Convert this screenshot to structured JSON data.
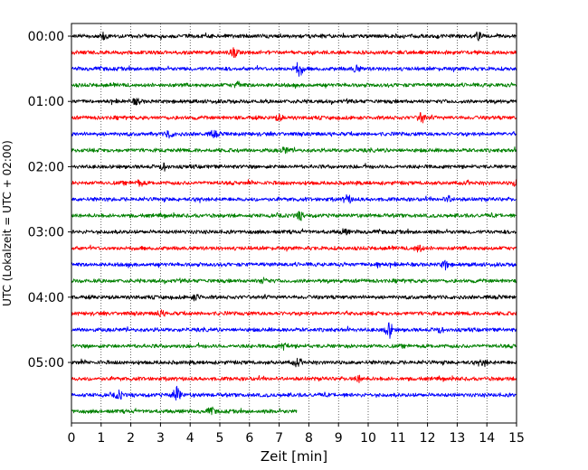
{
  "chart_data": {
    "type": "line",
    "title": "",
    "xlabel": "Zeit  [min]",
    "ylabel": "UTC (Lokalzeit = UTC + 02:00)",
    "xlim": [
      0,
      15
    ],
    "x_ticks": [
      0,
      1,
      2,
      3,
      4,
      5,
      6,
      7,
      8,
      9,
      10,
      11,
      12,
      13,
      14,
      15
    ],
    "y_tick_labels": [
      "00:00",
      "01:00",
      "02:00",
      "03:00",
      "04:00",
      "05:00"
    ],
    "grid": "vertical dotted lines at each minute",
    "trace_minutes": 15,
    "last_trace_end_minute": 7.6,
    "trace_colors": [
      "#000000",
      "#ff0000",
      "#0000ff",
      "#008000"
    ],
    "series": [
      {
        "start": "00:00",
        "color": "#000000"
      },
      {
        "start": "00:15",
        "color": "#ff0000"
      },
      {
        "start": "00:30",
        "color": "#0000ff"
      },
      {
        "start": "00:45",
        "color": "#008000"
      },
      {
        "start": "01:00",
        "color": "#000000"
      },
      {
        "start": "01:15",
        "color": "#ff0000"
      },
      {
        "start": "01:30",
        "color": "#0000ff"
      },
      {
        "start": "01:45",
        "color": "#008000"
      },
      {
        "start": "02:00",
        "color": "#000000"
      },
      {
        "start": "02:15",
        "color": "#ff0000"
      },
      {
        "start": "02:30",
        "color": "#0000ff"
      },
      {
        "start": "02:45",
        "color": "#008000"
      },
      {
        "start": "03:00",
        "color": "#000000"
      },
      {
        "start": "03:15",
        "color": "#ff0000"
      },
      {
        "start": "03:30",
        "color": "#0000ff"
      },
      {
        "start": "03:45",
        "color": "#008000"
      },
      {
        "start": "04:00",
        "color": "#000000"
      },
      {
        "start": "04:15",
        "color": "#ff0000"
      },
      {
        "start": "04:30",
        "color": "#0000ff"
      },
      {
        "start": "04:45",
        "color": "#008000"
      },
      {
        "start": "05:00",
        "color": "#000000"
      },
      {
        "start": "05:15",
        "color": "#ff0000"
      },
      {
        "start": "05:30",
        "color": "#0000ff"
      },
      {
        "start": "05:45",
        "color": "#008000"
      }
    ],
    "events": [
      {
        "trace": 0,
        "minute": 1.1,
        "amp": 1.6
      },
      {
        "trace": 0,
        "minute": 13.7,
        "amp": 1.7
      },
      {
        "trace": 1,
        "minute": 5.5,
        "amp": 2.2
      },
      {
        "trace": 2,
        "minute": 7.6,
        "amp": 1.5
      },
      {
        "trace": 2,
        "minute": 7.7,
        "amp": 2.6
      },
      {
        "trace": 2,
        "minute": 9.6,
        "amp": 1.6
      },
      {
        "trace": 3,
        "minute": 5.6,
        "amp": 1.6
      },
      {
        "trace": 4,
        "minute": 2.2,
        "amp": 1.4
      },
      {
        "trace": 5,
        "minute": 11.8,
        "amp": 2.6
      },
      {
        "trace": 5,
        "minute": 7.0,
        "amp": 1.3
      },
      {
        "trace": 6,
        "minute": 3.3,
        "amp": 1.8
      },
      {
        "trace": 6,
        "minute": 4.8,
        "amp": 1.6
      },
      {
        "trace": 7,
        "minute": 7.2,
        "amp": 1.5
      },
      {
        "trace": 8,
        "minute": 3.1,
        "amp": 1.6
      },
      {
        "trace": 9,
        "minute": 2.3,
        "amp": 1.4
      },
      {
        "trace": 9,
        "minute": 15.0,
        "amp": 1.8
      },
      {
        "trace": 10,
        "minute": 9.3,
        "amp": 2.2
      },
      {
        "trace": 10,
        "minute": 12.7,
        "amp": 1.5
      },
      {
        "trace": 11,
        "minute": 7.7,
        "amp": 2.0
      },
      {
        "trace": 12,
        "minute": 9.2,
        "amp": 1.4
      },
      {
        "trace": 13,
        "minute": 11.7,
        "amp": 2.0
      },
      {
        "trace": 14,
        "minute": 10.3,
        "amp": 1.5
      },
      {
        "trace": 14,
        "minute": 12.6,
        "amp": 2.2
      },
      {
        "trace": 15,
        "minute": 6.5,
        "amp": 1.5
      },
      {
        "trace": 16,
        "minute": 4.2,
        "amp": 1.4
      },
      {
        "trace": 17,
        "minute": 3.0,
        "amp": 1.4
      },
      {
        "trace": 18,
        "minute": 10.7,
        "amp": 4.2
      },
      {
        "trace": 18,
        "minute": 12.4,
        "amp": 1.4
      },
      {
        "trace": 19,
        "minute": 7.2,
        "amp": 1.6
      },
      {
        "trace": 20,
        "minute": 7.6,
        "amp": 1.6
      },
      {
        "trace": 20,
        "minute": 13.9,
        "amp": 1.5
      },
      {
        "trace": 21,
        "minute": 9.7,
        "amp": 1.6
      },
      {
        "trace": 22,
        "minute": 1.6,
        "amp": 2.0
      },
      {
        "trace": 22,
        "minute": 3.55,
        "amp": 4.5
      },
      {
        "trace": 23,
        "minute": 4.7,
        "amp": 1.6
      }
    ]
  }
}
